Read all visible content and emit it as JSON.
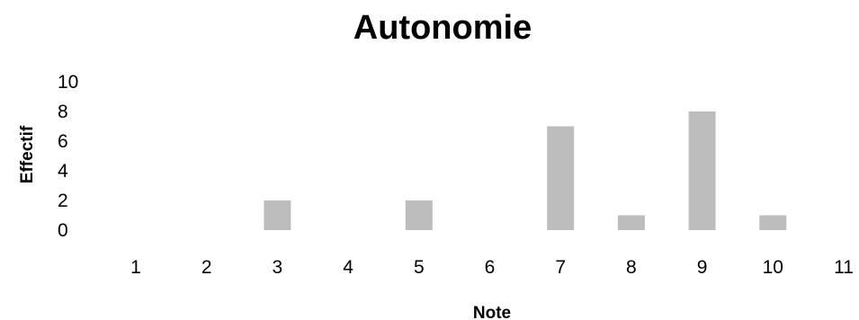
{
  "chart_data": {
    "type": "bar",
    "title": "Autonomie",
    "xlabel": "Note",
    "ylabel": "Effectif",
    "categories": [
      "1",
      "2",
      "3",
      "4",
      "5",
      "6",
      "7",
      "8",
      "9",
      "10",
      "11"
    ],
    "values": [
      0,
      0,
      2,
      0,
      2,
      0,
      7,
      1,
      8,
      1,
      0
    ],
    "y_ticks": [
      "0",
      "2",
      "4",
      "6",
      "8",
      "10"
    ],
    "ylim": [
      0,
      10
    ],
    "grid": false,
    "bar_color": "#bdbdbd"
  }
}
